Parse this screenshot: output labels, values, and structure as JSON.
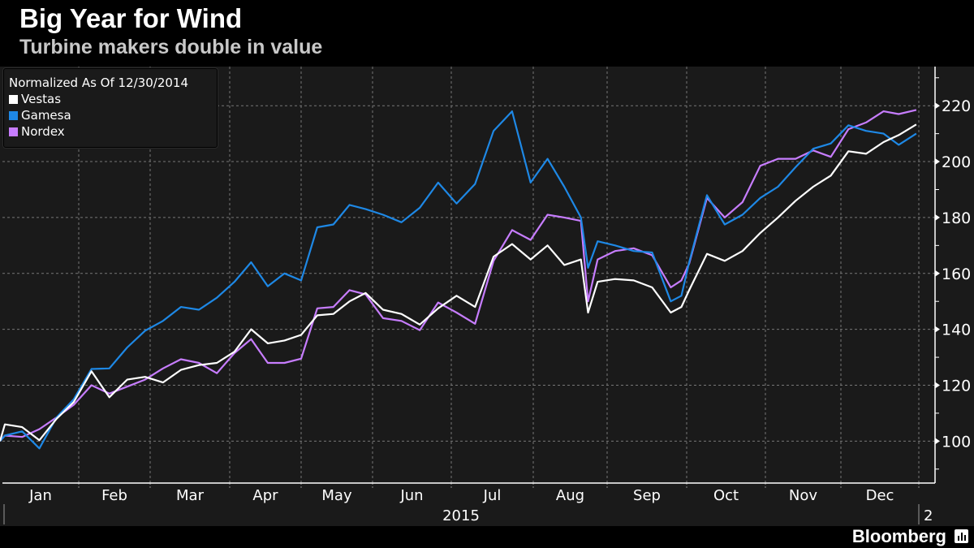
{
  "title": "Big Year for Wind",
  "subtitle": "Turbine makers double in value",
  "brand": "Bloomberg",
  "brand_icon": "bar-chart-icon",
  "chart_data": {
    "type": "line",
    "legend_title": "Normalized As Of 12/30/2014",
    "legend_position": "top-left",
    "grid": true,
    "ylim": [
      85,
      234
    ],
    "yticks": [
      100,
      120,
      140,
      160,
      180,
      200,
      220
    ],
    "y_axis_side": "right",
    "xlim": [
      "2014-12-30",
      "2015-12-31"
    ],
    "month_labels": [
      "Jan",
      "Feb",
      "Mar",
      "Apr",
      "May",
      "Jun",
      "Jul",
      "Aug",
      "Sep",
      "Oct",
      "Nov",
      "Dec"
    ],
    "year_label": "2015",
    "next_year_label": "2",
    "dates": [
      "2014-12-30",
      "2015-01-02",
      "2015-01-09",
      "2015-01-16",
      "2015-01-23",
      "2015-01-30",
      "2015-02-06",
      "2015-02-13",
      "2015-02-20",
      "2015-02-27",
      "2015-03-06",
      "2015-03-13",
      "2015-03-20",
      "2015-03-27",
      "2015-04-03",
      "2015-04-10",
      "2015-04-17",
      "2015-04-24",
      "2015-05-01",
      "2015-05-08",
      "2015-05-15",
      "2015-05-22",
      "2015-05-29",
      "2015-06-05",
      "2015-06-12",
      "2015-06-19",
      "2015-06-26",
      "2015-07-03",
      "2015-07-10",
      "2015-07-17",
      "2015-07-24",
      "2015-07-31",
      "2015-08-07",
      "2015-08-14",
      "2015-08-21",
      "2015-08-24",
      "2015-08-28",
      "2015-09-04",
      "2015-09-11",
      "2015-09-18",
      "2015-09-25",
      "2015-09-29",
      "2015-10-02",
      "2015-10-09",
      "2015-10-16",
      "2015-10-23",
      "2015-10-30",
      "2015-11-06",
      "2015-11-13",
      "2015-11-20",
      "2015-11-27",
      "2015-12-04",
      "2015-12-11",
      "2015-12-18",
      "2015-12-24",
      "2015-12-31"
    ],
    "series": [
      {
        "name": "Vestas",
        "color": "#ffffff",
        "values": [
          100,
          106,
          105,
          100.3,
          108,
          114,
          125,
          115.7,
          122,
          123,
          121,
          125.5,
          127.2,
          128,
          132,
          140,
          135,
          136,
          138,
          145,
          145.5,
          150,
          153,
          147,
          145.5,
          141.7,
          147.5,
          152,
          148,
          166,
          170.5,
          165,
          170,
          163,
          165,
          146,
          157,
          158,
          157.5,
          155,
          146,
          148,
          154,
          167,
          164.5,
          168,
          174.5,
          180,
          186,
          191,
          195,
          203.7,
          202.8,
          207,
          209.5,
          213.3
        ]
      },
      {
        "name": "Gamesa",
        "color": "#1e88e5",
        "values": [
          100,
          102,
          103.5,
          97.4,
          108.5,
          115,
          125.8,
          126,
          133.5,
          139.5,
          143,
          148,
          147,
          151.3,
          157,
          164,
          155.4,
          160,
          157.5,
          176.5,
          177.5,
          184.5,
          183,
          181,
          178.3,
          183.5,
          192.5,
          185,
          192,
          211,
          218,
          192.5,
          201,
          191,
          180,
          162,
          171.5,
          170,
          168,
          167.5,
          150,
          152,
          164,
          188,
          177.5,
          181,
          187,
          191,
          198,
          204.6,
          206.5,
          213,
          211,
          210,
          206,
          210
        ]
      },
      {
        "name": "Nordex",
        "color": "#c77dff",
        "values": [
          100,
          102,
          101.5,
          104.3,
          108.5,
          113,
          120,
          117,
          119.5,
          122,
          126,
          129.3,
          128,
          124.3,
          131.5,
          136.5,
          128,
          128,
          129.5,
          147.5,
          148,
          154,
          152.5,
          144,
          143,
          139.7,
          149.6,
          146,
          142,
          164.5,
          175.5,
          172,
          181,
          180,
          178.8,
          150,
          165,
          168,
          169,
          166.5,
          155,
          157.5,
          163.5,
          187,
          180,
          185.5,
          198.5,
          201,
          201,
          204,
          201.7,
          211.6,
          214,
          218,
          217,
          218.5
        ]
      }
    ]
  }
}
